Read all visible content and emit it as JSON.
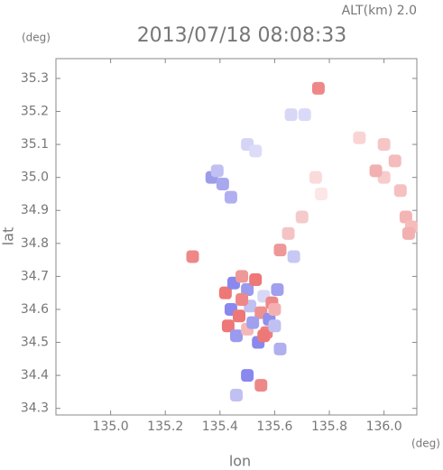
{
  "chart_data": {
    "type": "scatter",
    "title": "2013/07/18 08:08:33",
    "subtitle": "ALT(km) 2.0",
    "xlabel": "lon",
    "ylabel": "lat",
    "xunit": "(deg)",
    "yunit": "(deg)",
    "xlim": [
      134.8,
      136.12
    ],
    "ylim": [
      34.28,
      35.36
    ],
    "xticks": [
      {
        "value": 135,
        "label": "135.0"
      },
      135.2,
      135.4,
      135.6,
      135.8,
      {
        "value": 136,
        "label": "136.0"
      }
    ],
    "yticks": [
      34.3,
      34.4,
      34.5,
      34.6,
      34.7,
      34.8,
      34.9,
      {
        "value": 35,
        "label": "35.0"
      },
      35.1,
      35.2,
      35.3
    ],
    "x": [
      136.0,
      136.04,
      136.0,
      136.06,
      135.97,
      136.08,
      136.1,
      136.09,
      135.37,
      135.41,
      135.44,
      135.39,
      135.5,
      135.53,
      135.66,
      135.71,
      135.76,
      135.75,
      135.77,
      135.91,
      135.42,
      135.45,
      135.48,
      135.5,
      135.53,
      135.56,
      135.59,
      135.61,
      135.44,
      135.47,
      135.51,
      135.55,
      135.58,
      135.6,
      135.43,
      135.46,
      135.5,
      135.54,
      135.57,
      135.62,
      135.48,
      135.52,
      135.56,
      135.6,
      135.65,
      135.62,
      135.67,
      135.7,
      135.5,
      135.55,
      135.46,
      135.3
    ],
    "y": [
      35.1,
      35.05,
      35.0,
      34.96,
      35.02,
      34.88,
      34.85,
      34.83,
      35.0,
      34.98,
      34.94,
      35.02,
      35.1,
      35.08,
      35.19,
      35.19,
      35.27,
      35.0,
      34.95,
      35.12,
      34.65,
      34.68,
      34.7,
      34.66,
      34.69,
      34.64,
      34.62,
      34.66,
      34.6,
      34.58,
      34.61,
      34.59,
      34.57,
      34.6,
      34.55,
      34.52,
      34.54,
      34.5,
      34.53,
      34.48,
      34.63,
      34.56,
      34.52,
      34.55,
      34.83,
      34.78,
      34.76,
      34.88,
      34.4,
      34.37,
      34.34,
      34.76
    ],
    "colors": [
      "#f6c6c6",
      "#f4bcbc",
      "#f8cccc",
      "#f6c0c0",
      "#f2b0b0",
      "#f4b4b4",
      "#f6bcbc",
      "#f2b0b0",
      "#9c9cea",
      "#a8a8ee",
      "#b0b0f0",
      "#c0c0f2",
      "#d4d4f6",
      "#dcdcf8",
      "#d8d8f6",
      "#dadaf8",
      "#ee8888",
      "#fadada",
      "#fce6e6",
      "#fad4d4",
      "#ee7777",
      "#8888ee",
      "#ee9999",
      "#9a9aee",
      "#ee7777",
      "#d8d8f6",
      "#ee8888",
      "#a0a0ee",
      "#8888ee",
      "#ee7777",
      "#c0c0f2",
      "#ee9090",
      "#9090ee",
      "#f4b0b0",
      "#ee7777",
      "#9a9aee",
      "#f4b8b8",
      "#8888ee",
      "#ee8080",
      "#b0b0f0",
      "#ee8888",
      "#a0a0ee",
      "#ee7777",
      "#c0c0f2",
      "#f4c4c4",
      "#ee9999",
      "#c8c8f4",
      "#f4caca",
      "#8888ee",
      "#ee8888",
      "#c0c0f2",
      "#ee8888"
    ]
  }
}
